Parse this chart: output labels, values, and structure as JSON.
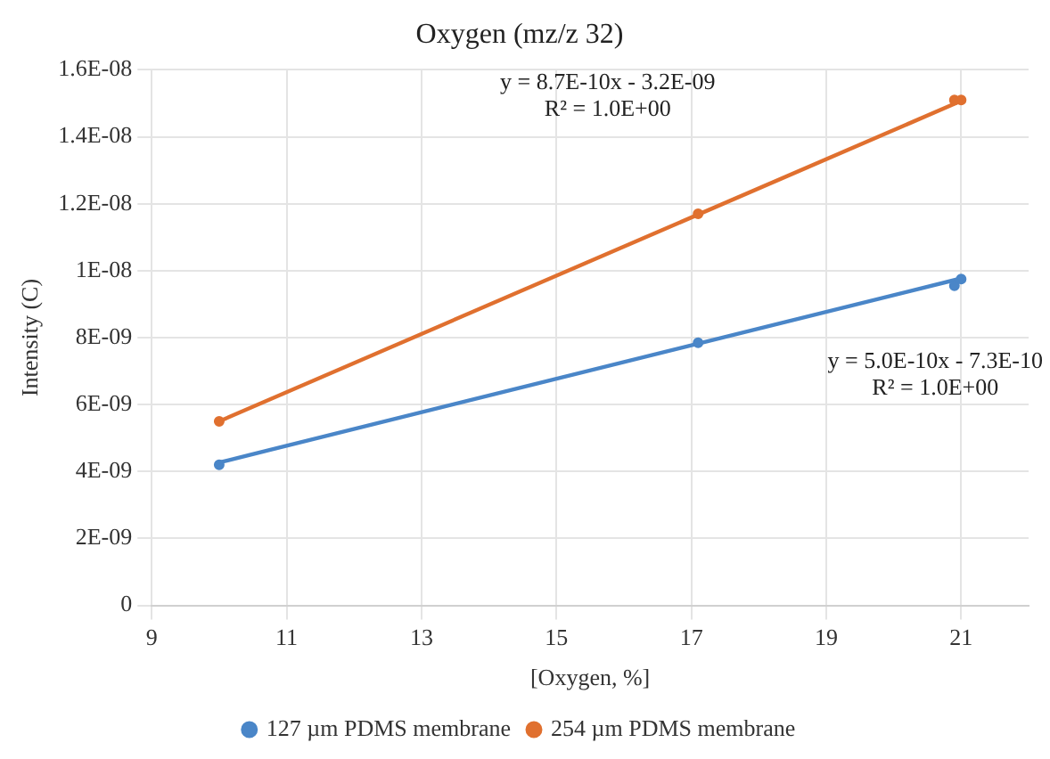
{
  "chart_data": {
    "type": "scatter",
    "title": "Oxygen (mz/z 32)",
    "xlabel": "[Oxygen, %]",
    "ylabel": "Intensity (C)",
    "xlim": [
      9,
      22
    ],
    "xticks": [
      9,
      11,
      13,
      15,
      17,
      19,
      21
    ],
    "ylim": [
      0,
      1.6e-08
    ],
    "yticks": [
      {
        "value": 0,
        "label": "0"
      },
      {
        "value": 2e-09,
        "label": "2E-09"
      },
      {
        "value": 4e-09,
        "label": "4E-09"
      },
      {
        "value": 6e-09,
        "label": "6E-09"
      },
      {
        "value": 8e-09,
        "label": "8E-09"
      },
      {
        "value": 1e-08,
        "label": "1E-08"
      },
      {
        "value": 1.2e-08,
        "label": "1.2E-08"
      },
      {
        "value": 1.4e-08,
        "label": "1.4E-08"
      },
      {
        "value": 1.6e-08,
        "label": "1.6E-08"
      }
    ],
    "grid": true,
    "legend": "bottom",
    "marker": "circle",
    "series": [
      {
        "name": "127 µm PDMS membrane",
        "color": "#4a86c8",
        "x": [
          10,
          17.1,
          20.9,
          21
        ],
        "values": [
          4.2e-09,
          7.85e-09,
          9.55e-09,
          9.75e-09
        ]
      },
      {
        "name": "254 µm PDMS membrane",
        "color": "#e0702f",
        "x": [
          10,
          17.1,
          20.9,
          21
        ],
        "values": [
          5.5e-09,
          1.17e-08,
          1.51e-08,
          1.51e-08
        ]
      },
      {
        "type": "line",
        "marker": "none",
        "color": "#4a86c8",
        "x": [
          10,
          21
        ],
        "values": [
          4.27e-09,
          9.77e-09
        ]
      },
      {
        "type": "line",
        "marker": "none",
        "color": "#e0702f",
        "x": [
          10,
          21
        ],
        "values": [
          5.5e-09,
          1.507e-08
        ]
      }
    ],
    "annotations": [
      "y = 8.7E-10x - 3.2E-09\nR² = 1.0E+00",
      "y = 5.0E-10x - 7.3E-10\nR² = 1.0E+00"
    ]
  }
}
